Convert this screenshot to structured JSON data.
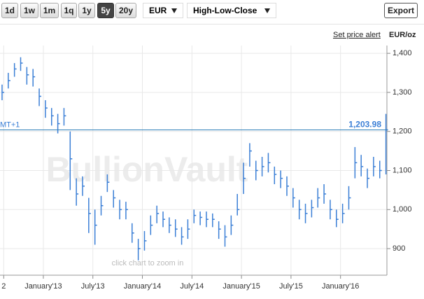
{
  "ui": {
    "ranges": [
      "1d",
      "1w",
      "1m",
      "1q",
      "1y",
      "5y",
      "20y"
    ],
    "active_range": 5,
    "currency": "EUR",
    "chart_mode": "High-Low-Close",
    "export": "Export",
    "price_alert": "Set price alert",
    "unit": "EUR/oz"
  },
  "chart_data": {
    "type": "hlc",
    "color": "#3b7fd6",
    "grid": true,
    "watermark": "BullionVault",
    "hint": "click chart to zoom in",
    "timezone_label": "MT+1",
    "price_line": {
      "value": 1203.98,
      "label": "1,203.98",
      "color": "#2c7fb8"
    },
    "xlim": [
      6.75,
      53.62
    ],
    "ylim": [
      832,
      1420
    ],
    "xticks": [
      {
        "value": 7.2,
        "label": "2"
      },
      {
        "value": 12,
        "label": "January'13"
      },
      {
        "value": 18,
        "label": "July'13"
      },
      {
        "value": 24,
        "label": "January'14"
      },
      {
        "value": 30,
        "label": "July'14"
      },
      {
        "value": 36,
        "label": "January'15"
      },
      {
        "value": 42,
        "label": "July'15"
      },
      {
        "value": 48,
        "label": "January'16"
      }
    ],
    "yticks": [
      900,
      {
        "value": 1000,
        "label": "1,000"
      },
      {
        "value": 1100,
        "label": "1,100"
      },
      {
        "value": 1200,
        "label": "1,200"
      },
      {
        "value": 1300,
        "label": "1,300"
      },
      {
        "value": 1400,
        "label": "1,400"
      }
    ],
    "x": [
      7.0,
      7.75,
      8.5,
      9.25,
      10.0,
      10.75,
      11.5,
      12.25,
      13.0,
      13.75,
      14.5,
      15.25,
      16.0,
      16.75,
      17.5,
      18.25,
      19.0,
      19.75,
      20.5,
      21.25,
      22.0,
      22.75,
      23.5,
      24.25,
      25.0,
      25.75,
      26.5,
      27.25,
      28.0,
      28.75,
      29.5,
      30.25,
      31.0,
      31.75,
      32.5,
      33.25,
      34.0,
      34.75,
      35.5,
      36.25,
      37.0,
      37.75,
      38.5,
      39.25,
      40.0,
      40.75,
      41.5,
      42.25,
      43.0,
      43.75,
      44.5,
      45.25,
      46.0,
      46.75,
      47.5,
      48.25,
      49.0,
      49.75,
      50.5,
      51.25,
      52.0,
      52.75,
      53.5
    ],
    "high": [
      1320,
      1350,
      1375,
      1390,
      1365,
      1360,
      1310,
      1280,
      1260,
      1245,
      1260,
      1200,
      1080,
      1085,
      1030,
      1000,
      1035,
      1090,
      1050,
      1025,
      1020,
      965,
      925,
      945,
      985,
      1010,
      995,
      980,
      975,
      955,
      975,
      1000,
      995,
      995,
      990,
      970,
      960,
      985,
      1040,
      1120,
      1170,
      1125,
      1135,
      1145,
      1110,
      1100,
      1085,
      1055,
      1025,
      1015,
      1025,
      1055,
      1065,
      1025,
      1000,
      1015,
      1060,
      1160,
      1140,
      1105,
      1135,
      1125,
      1245
    ],
    "low": [
      1280,
      1310,
      1340,
      1355,
      1320,
      1315,
      1265,
      1235,
      1215,
      1195,
      1215,
      1050,
      1010,
      1035,
      940,
      910,
      985,
      1045,
      1005,
      975,
      975,
      915,
      870,
      895,
      935,
      965,
      955,
      940,
      930,
      910,
      925,
      965,
      960,
      955,
      955,
      925,
      905,
      935,
      985,
      1040,
      1110,
      1075,
      1085,
      1095,
      1065,
      1055,
      1035,
      1005,
      975,
      965,
      980,
      1005,
      1015,
      975,
      955,
      965,
      1000,
      1080,
      1085,
      1055,
      1085,
      1080,
      1090
    ],
    "close": [
      1300,
      1330,
      1360,
      1375,
      1345,
      1340,
      1290,
      1260,
      1240,
      1220,
      1240,
      1130,
      1040,
      1060,
      990,
      960,
      1010,
      1070,
      1030,
      1000,
      1000,
      940,
      900,
      920,
      960,
      990,
      975,
      960,
      950,
      930,
      950,
      985,
      980,
      975,
      975,
      950,
      930,
      960,
      1000,
      1080,
      1150,
      1100,
      1110,
      1120,
      1090,
      1080,
      1060,
      1030,
      1000,
      990,
      1005,
      1030,
      1040,
      1000,
      975,
      990,
      1030,
      1120,
      1110,
      1080,
      1110,
      1100,
      1204
    ]
  }
}
